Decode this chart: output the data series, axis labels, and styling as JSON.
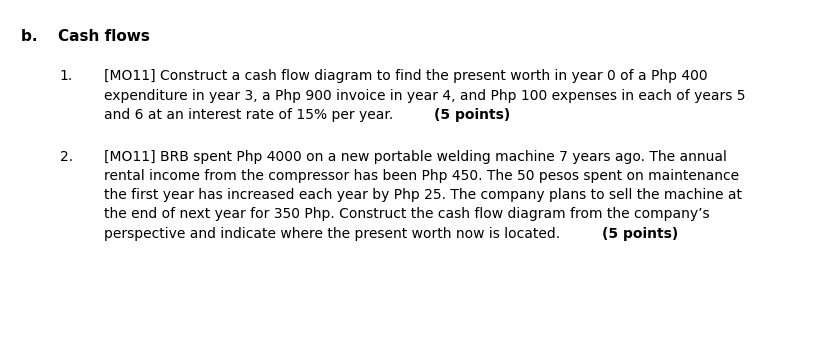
{
  "background_color": "#ffffff",
  "font_size": 10.0,
  "font_family": "DejaVu Sans",
  "title": "b.  Cash flows",
  "title_fontsize": 11.0,
  "sections": [
    {
      "number": "1.",
      "lines_normal": [
        "[MO11] Construct a cash flow diagram to find the present worth in year 0 of a Php 400",
        "expenditure in year 3, a Php 900 invoice in year 4, and Php 100 expenses in each of years 5",
        "and 6 at an interest rate of 15% per year. "
      ],
      "last_line_normal": "and 6 at an interest rate of 15% per year. ",
      "last_line_bold": "(5 points)",
      "last_line_idx": 2
    },
    {
      "number": "2.",
      "lines_normal": [
        "[MO11] BRB spent Php 4000 on a new portable welding machine 7 years ago. The annual",
        "rental income from the compressor has been Php 450. The 50 pesos spent on maintenance",
        "the first year has increased each year by Php 25. The company plans to sell the machine at",
        "the end of next year for 350 Php. Construct the cash flow diagram from the company’s",
        "perspective and indicate where the present worth now is located. "
      ],
      "last_line_normal": "perspective and indicate where the present worth now is located. ",
      "last_line_bold": "(5 points)",
      "last_line_idx": 4
    }
  ]
}
